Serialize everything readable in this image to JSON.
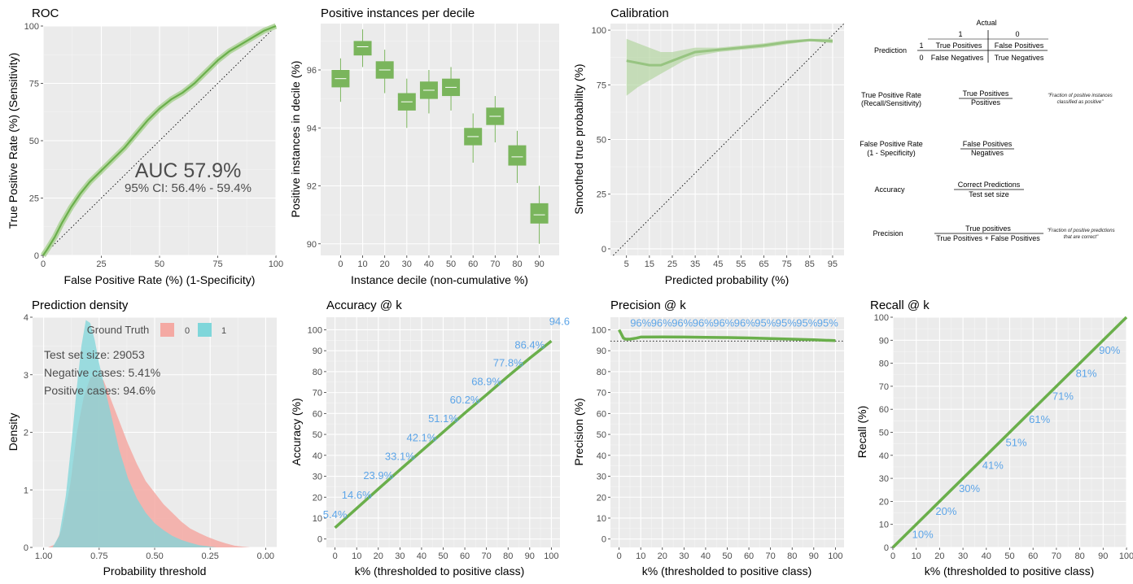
{
  "colors": {
    "panel_bg": "#EBEBEB",
    "grid_major": "#FFFFFF",
    "green": "#6AAF4B",
    "green_box": "#7AB55C",
    "green_light": "#B5D6A2",
    "red_fill": "#F4A9A3",
    "cyan_fill": "#7FD6DA",
    "blue_label": "#5DA5E8"
  },
  "chart_data": [
    {
      "id": "roc",
      "type": "line",
      "title": "ROC",
      "xlabel": "False Positive Rate (%)     (1-Specificity)",
      "ylabel": "True Positive Rate (%)     (Sensitivity)",
      "xlim": [
        0,
        100
      ],
      "ylim": [
        0,
        100
      ],
      "xticks": [
        "0",
        "25",
        "50",
        "75",
        "100"
      ],
      "yticks": [
        "0",
        "25",
        "50",
        "75",
        "100"
      ],
      "x": [
        0,
        2,
        5,
        8,
        12,
        16,
        20,
        25,
        30,
        35,
        40,
        45,
        50,
        55,
        60,
        65,
        70,
        75,
        80,
        85,
        90,
        95,
        100
      ],
      "y": [
        0,
        3,
        8,
        14,
        21,
        27,
        32,
        37,
        42,
        47,
        53,
        59,
        64,
        68,
        71,
        75,
        80,
        85,
        89,
        92,
        95,
        98,
        100
      ],
      "auc_text": "AUC 57.9%",
      "ci_text": "95% CI: 56.4% - 59.4%"
    },
    {
      "id": "decile",
      "type": "box",
      "title": "Positive instances per decile",
      "xlabel": "Instance decile (non-cumulative %)",
      "ylabel": "Positive instances in decile (%)",
      "ylim": [
        89.6,
        97.6
      ],
      "yticks": [
        "90",
        "92",
        "94",
        "96"
      ],
      "categories": [
        "0",
        "10",
        "20",
        "30",
        "40",
        "50",
        "60",
        "70",
        "80",
        "90"
      ],
      "median": [
        95.7,
        96.8,
        96.0,
        94.9,
        95.3,
        95.4,
        93.7,
        94.4,
        93.0,
        91.0
      ],
      "q1": [
        95.4,
        96.5,
        95.7,
        94.6,
        95.0,
        95.1,
        93.4,
        94.1,
        92.7,
        90.7
      ],
      "q3": [
        96.0,
        97.0,
        96.3,
        95.2,
        95.6,
        95.7,
        94.0,
        94.7,
        93.4,
        91.4
      ],
      "low": [
        94.9,
        96.1,
        95.2,
        94.0,
        94.5,
        94.6,
        92.8,
        93.5,
        92.1,
        90.0
      ],
      "high": [
        96.4,
        97.4,
        96.7,
        95.7,
        96.0,
        96.1,
        94.5,
        95.1,
        93.9,
        92.0
      ]
    },
    {
      "id": "calibration",
      "type": "line",
      "title": "Calibration",
      "xlabel": "Predicted probability (%)",
      "ylabel": "Smoothed true probability (%)",
      "xlim": [
        -2,
        100
      ],
      "ylim": [
        -3,
        103
      ],
      "xticks": [
        "5",
        "15",
        "25",
        "35",
        "45",
        "55",
        "65",
        "75",
        "85",
        "95"
      ],
      "yticks": [
        "0",
        "25",
        "50",
        "75",
        "100"
      ],
      "x": [
        5,
        10,
        15,
        20,
        25,
        30,
        35,
        45,
        55,
        65,
        75,
        85,
        95
      ],
      "y": [
        86,
        85,
        84,
        84,
        86,
        88,
        90,
        91,
        92,
        93,
        94.5,
        95.5,
        95
      ],
      "lower": [
        70,
        74,
        77,
        80,
        83,
        86,
        88,
        90,
        91,
        92,
        93.5,
        95,
        94
      ],
      "upper": [
        96,
        94,
        92,
        90,
        90,
        91,
        92,
        92,
        93,
        94,
        95.5,
        96,
        96
      ]
    },
    {
      "id": "density",
      "type": "area",
      "title": "Prediction density",
      "xlabel": "Probability threshold",
      "ylabel": "Density",
      "xlim": [
        1.05,
        -0.05
      ],
      "ylim": [
        0,
        4
      ],
      "xticks": [
        "1.00",
        "0.75",
        "0.50",
        "0.25",
        "0.00"
      ],
      "yticks": [
        "0",
        "1",
        "2",
        "3",
        "4"
      ],
      "legend_title": "Ground Truth",
      "legend_labels": [
        "0",
        "1"
      ],
      "series": [
        {
          "name": "0",
          "x": [
            0.98,
            0.95,
            0.92,
            0.88,
            0.85,
            0.82,
            0.79,
            0.76,
            0.73,
            0.7,
            0.66,
            0.62,
            0.58,
            0.54,
            0.5,
            0.46,
            0.42,
            0.38,
            0.34,
            0.3,
            0.26,
            0.22,
            0.18,
            0.14,
            0.1,
            0.07
          ],
          "y": [
            0,
            0.05,
            0.3,
            1.1,
            2.0,
            2.6,
            2.95,
            3.0,
            2.9,
            2.6,
            2.2,
            1.8,
            1.45,
            1.15,
            0.95,
            0.75,
            0.6,
            0.45,
            0.33,
            0.25,
            0.18,
            0.12,
            0.07,
            0.03,
            0.01,
            0
          ]
        },
        {
          "name": "1",
          "x": [
            0.96,
            0.93,
            0.9,
            0.87,
            0.85,
            0.83,
            0.81,
            0.79,
            0.77,
            0.75,
            0.72,
            0.69,
            0.66,
            0.62,
            0.58,
            0.54,
            0.5,
            0.46,
            0.42,
            0.38,
            0.34,
            0.3,
            0.26,
            0.22
          ],
          "y": [
            0,
            0.2,
            0.9,
            2.0,
            2.8,
            3.5,
            3.95,
            3.9,
            3.6,
            3.2,
            2.7,
            2.2,
            1.7,
            1.2,
            0.85,
            0.6,
            0.42,
            0.3,
            0.2,
            0.13,
            0.08,
            0.04,
            0.02,
            0
          ]
        }
      ],
      "annotations": [
        "Test set size: 29053",
        "Negative cases: 5.41%",
        "Positive cases:   94.6%"
      ]
    },
    {
      "id": "accuracy",
      "type": "line",
      "title": "Accuracy @ k",
      "xlabel": "k% (thresholded to positive class)",
      "ylabel": "Accuracy (%)",
      "xlim": [
        -4,
        104
      ],
      "ylim": [
        -4,
        106
      ],
      "xticks": [
        "0",
        "10",
        "20",
        "30",
        "40",
        "50",
        "60",
        "70",
        "80",
        "90",
        "100"
      ],
      "yticks": [
        "0",
        "10",
        "20",
        "30",
        "40",
        "50",
        "60",
        "70",
        "80",
        "90",
        "100"
      ],
      "x": [
        0,
        10,
        20,
        30,
        40,
        50,
        60,
        70,
        80,
        90,
        100
      ],
      "y": [
        5.4,
        14.6,
        23.9,
        33.1,
        42.1,
        51.1,
        60.2,
        68.9,
        77.8,
        86.4,
        94.6
      ],
      "labels": [
        "5.4%",
        "14.6%",
        "23.9%",
        "33.1%",
        "42.1%",
        "51.1%",
        "60.2%",
        "68.9%",
        "77.8%",
        "86.4%",
        "94.6"
      ]
    },
    {
      "id": "precision",
      "type": "line",
      "title": "Precision @ k",
      "xlabel": "k% (thresholded to positive class)",
      "ylabel": "Precision (%)",
      "xlim": [
        -4,
        104
      ],
      "ylim": [
        -4,
        106
      ],
      "xticks": [
        "0",
        "10",
        "20",
        "30",
        "40",
        "50",
        "60",
        "70",
        "80",
        "90",
        "100"
      ],
      "yticks": [
        "0",
        "10",
        "20",
        "30",
        "40",
        "50",
        "60",
        "70",
        "80",
        "90",
        "100"
      ],
      "x": [
        0,
        1,
        2,
        3,
        5,
        8,
        10,
        20,
        30,
        40,
        50,
        60,
        70,
        80,
        90,
        100
      ],
      "y": [
        100,
        98,
        96,
        95.5,
        95.5,
        96,
        96.5,
        96.6,
        96.5,
        96.4,
        96.3,
        96.1,
        95.8,
        95.5,
        95.2,
        94.8
      ],
      "baseline": 94.6,
      "labels": [
        "96%",
        "96%",
        "96%",
        "96%",
        "96%",
        "96%",
        "95%",
        "95%",
        "95%",
        "95%"
      ]
    },
    {
      "id": "recall",
      "type": "line",
      "title": "Recall @ k",
      "xlabel": "k% (thresholded to positive class)",
      "ylabel": "Recall (%)",
      "xlim": [
        0,
        100
      ],
      "ylim": [
        0,
        100
      ],
      "xticks": [
        "0",
        "10",
        "20",
        "30",
        "40",
        "50",
        "60",
        "70",
        "80",
        "90",
        "100"
      ],
      "yticks": [
        "0",
        "10",
        "20",
        "30",
        "40",
        "50",
        "60",
        "70",
        "80",
        "90",
        "100"
      ],
      "x": [
        0,
        100
      ],
      "y": [
        0,
        100
      ],
      "labels": [
        "10%",
        "20%",
        "30%",
        "41%",
        "51%",
        "61%",
        "71%",
        "81%",
        "90%"
      ]
    }
  ],
  "legend": {
    "actual": "Actual",
    "prediction": "Prediction",
    "one": "1",
    "zero": "0",
    "tp": "True Positives",
    "fp": "False Positives",
    "fn": "False Negatives",
    "tn": "True Negatives",
    "tpr_name": "True Positive Rate",
    "tpr_sub": "(Recall/Sensitivity)",
    "tpr_num": "True Positives",
    "tpr_den": "Positives",
    "tpr_note1": "\"Fraction of positive instances",
    "tpr_note2": "classified as positive\"",
    "fpr_name": "False Positive Rate",
    "fpr_sub": "(1 - Specificity)",
    "fpr_num": "False Positives",
    "fpr_den": "Negatives",
    "acc_name": "Accuracy",
    "acc_num": "Correct Predictions",
    "acc_den": "Test set size",
    "prec_name": "Precision",
    "prec_num": "True positives",
    "prec_den": "True Positives + False Positives",
    "prec_note1": "\"Fraction of positive predictions",
    "prec_note2": "that are correct\""
  }
}
